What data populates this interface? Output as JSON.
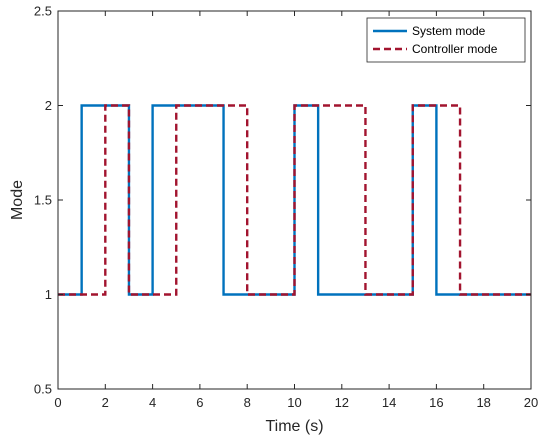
{
  "chart_data": {
    "type": "line",
    "title": "",
    "xlabel": "Time (s)",
    "ylabel": "Mode",
    "xlim": [
      0,
      20
    ],
    "ylim": [
      0.5,
      2.5
    ],
    "xticks": [
      0,
      2,
      4,
      6,
      8,
      10,
      12,
      14,
      16,
      18,
      20
    ],
    "yticks": [
      0.5,
      1,
      1.5,
      2,
      2.5
    ],
    "xtick_labels": [
      "0",
      "2",
      "4",
      "6",
      "8",
      "10",
      "12",
      "14",
      "16",
      "18",
      "20"
    ],
    "ytick_labels": [
      "0.5",
      "1",
      "1.5",
      "2",
      "2.5"
    ],
    "grid": false,
    "legend_position": "top-right",
    "series": [
      {
        "name": "System mode",
        "color": "#0072BD",
        "style": "solid",
        "x": [
          0,
          1,
          1,
          3,
          3,
          4,
          4,
          7,
          7,
          10,
          10,
          11,
          11,
          15,
          15,
          16,
          16,
          20
        ],
        "y": [
          1,
          1,
          2,
          2,
          1,
          1,
          2,
          2,
          1,
          1,
          2,
          2,
          1,
          1,
          2,
          2,
          1,
          1
        ]
      },
      {
        "name": "Controller mode",
        "color": "#A2142F",
        "style": "dashed",
        "x": [
          0,
          2,
          2,
          3,
          3,
          5,
          5,
          8,
          8,
          10,
          10,
          13,
          13,
          15,
          15,
          17,
          17,
          20
        ],
        "y": [
          1,
          1,
          2,
          2,
          1,
          1,
          2,
          2,
          1,
          1,
          2,
          2,
          1,
          1,
          2,
          2,
          1,
          1
        ]
      }
    ]
  }
}
